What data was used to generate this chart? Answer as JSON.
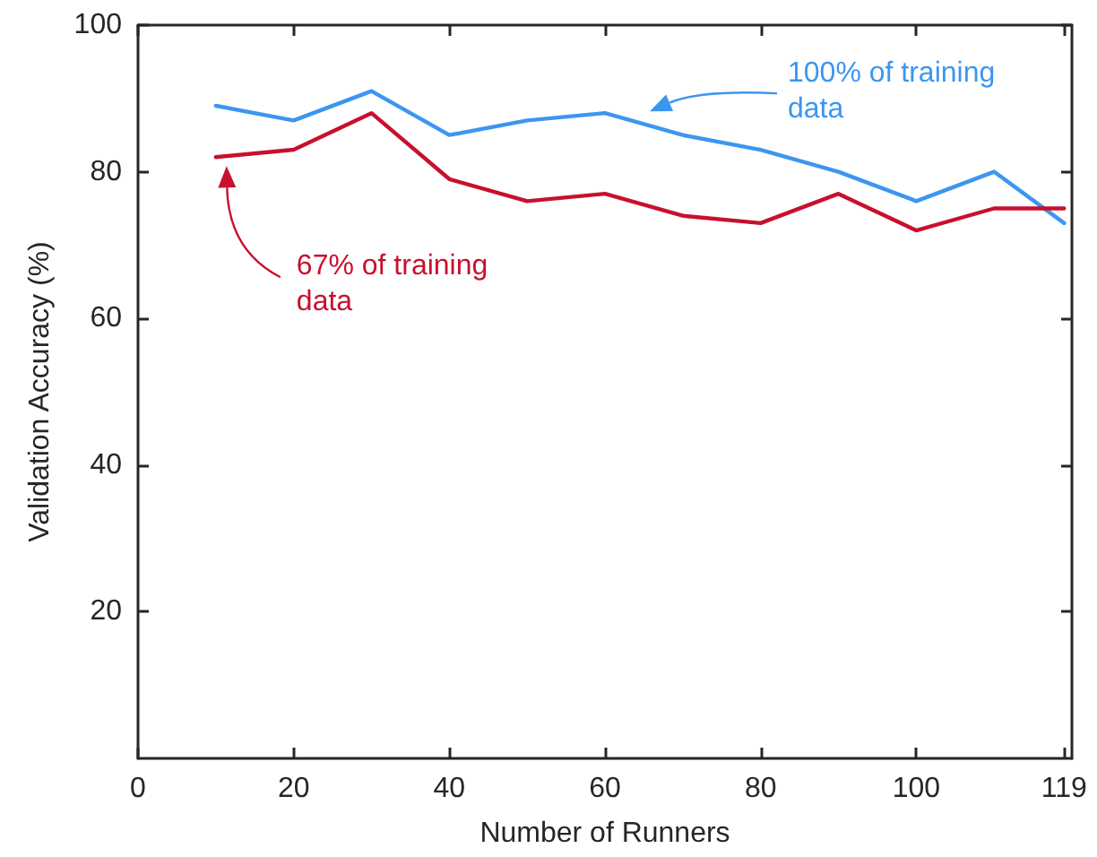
{
  "chart_data": {
    "type": "line",
    "xlabel": "Number of Runners",
    "ylabel": "Validation Accuracy (%)",
    "x": [
      10,
      20,
      30,
      40,
      50,
      60,
      70,
      80,
      90,
      100,
      110,
      119
    ],
    "series": [
      {
        "color": "#3c96f0",
        "values": [
          89,
          87,
          91,
          85,
          87,
          88,
          85,
          83,
          80,
          76,
          80,
          73
        ]
      },
      {
        "color": "#c8102e",
        "values": [
          82,
          83,
          88,
          79,
          76,
          77,
          74,
          73,
          77,
          72,
          75,
          75
        ]
      }
    ],
    "xlim": [
      0,
      120
    ],
    "xticks": [
      0,
      20,
      40,
      60,
      80,
      100,
      119
    ],
    "ylim": [
      0,
      100
    ],
    "yticks": [
      20,
      40,
      60,
      80,
      100
    ],
    "annotations": [
      "100% of training data",
      "67% of training data"
    ]
  }
}
